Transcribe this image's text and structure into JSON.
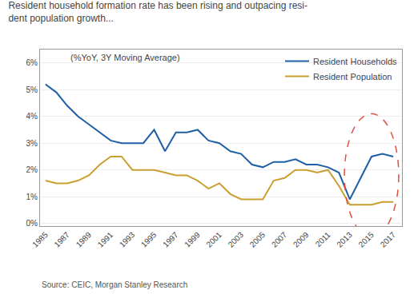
{
  "chart_data": {
    "type": "line",
    "title": [
      "Resident household formation rate has been rising and outpacing resi-",
      "dent population growth..."
    ],
    "subtitle": "(%YoY, 3Y Moving Average)",
    "source": "Source: CEIC, Morgan Stanley Research",
    "x": [
      1985,
      1986,
      1987,
      1988,
      1989,
      1990,
      1991,
      1992,
      1993,
      1994,
      1995,
      1996,
      1997,
      1998,
      1999,
      2000,
      2001,
      2002,
      2003,
      2004,
      2005,
      2006,
      2007,
      2008,
      2009,
      2010,
      2011,
      2012,
      2013,
      2014,
      2015,
      2016,
      2017
    ],
    "series": [
      {
        "name": "Resident Households",
        "color": "#1F5FA6",
        "values": [
          0.052,
          0.049,
          0.044,
          0.04,
          0.037,
          0.034,
          0.031,
          0.03,
          0.03,
          0.03,
          0.035,
          0.027,
          0.034,
          0.034,
          0.035,
          0.031,
          0.03,
          0.027,
          0.026,
          0.022,
          0.021,
          0.023,
          0.023,
          0.024,
          0.022,
          0.022,
          0.021,
          0.019,
          0.009,
          0.017,
          0.025,
          0.026,
          0.025
        ]
      },
      {
        "name": "Resident Population",
        "color": "#C8A030",
        "values": [
          0.016,
          0.015,
          0.015,
          0.016,
          0.018,
          0.022,
          0.025,
          0.025,
          0.02,
          0.02,
          0.02,
          0.019,
          0.018,
          0.018,
          0.016,
          0.013,
          0.015,
          0.011,
          0.009,
          0.009,
          0.009,
          0.016,
          0.017,
          0.02,
          0.02,
          0.019,
          0.02,
          0.014,
          0.007,
          0.007,
          0.007,
          0.008,
          0.008
        ]
      }
    ],
    "xlim": [
      1984.5,
      2017.8
    ],
    "xticks": [
      1985,
      1987,
      1989,
      1991,
      1993,
      1995,
      1997,
      1999,
      2001,
      2003,
      2005,
      2007,
      2009,
      2011,
      2013,
      2015,
      2017
    ],
    "ylim": [
      -0.001,
      0.065
    ],
    "yticks": [
      {
        "value": 0.0,
        "label": "0%"
      },
      {
        "value": 0.01,
        "label": "1%"
      },
      {
        "value": 0.02,
        "label": "2%"
      },
      {
        "value": 0.03,
        "label": "3%"
      },
      {
        "value": 0.04,
        "label": "4%"
      },
      {
        "value": 0.05,
        "label": "5%"
      },
      {
        "value": 0.06,
        "label": "6%"
      }
    ],
    "grid": true,
    "legend": "upper right",
    "ellipse": {
      "cx": 2015.0,
      "cy": 0.018,
      "width": 5.0,
      "height": 0.046,
      "color": "#E05040",
      "line_style": "dashed"
    }
  }
}
